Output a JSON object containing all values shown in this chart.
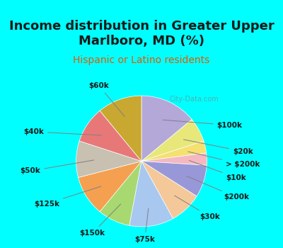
{
  "title": "Income distribution in Greater Upper\nMarlboro, MD (%)",
  "subtitle": "Hispanic or Latino residents",
  "background_color": "#00ffff",
  "chart_bg_color": "#e8f5f0",
  "labels": [
    "$100k",
    "$20k",
    "> $200k",
    "$10k",
    "$200k",
    "$30k",
    "$75k",
    "$150k",
    "$125k",
    "$50k",
    "$40k",
    "$60k"
  ],
  "sizes": [
    14,
    6,
    3,
    3,
    8,
    8,
    11,
    8,
    10,
    9,
    9,
    11
  ],
  "colors": [
    "#b3a8d8",
    "#e8e87a",
    "#f5e070",
    "#f5b8c0",
    "#9898d8",
    "#f5c899",
    "#a8c8f0",
    "#a8d870",
    "#f5a050",
    "#c8c0b0",
    "#e87878",
    "#c8a830"
  ],
  "label_color": "#1a1a1a",
  "title_color": "#1a1a1a",
  "subtitle_color": "#e05c00",
  "watermark": "City-Data.com"
}
